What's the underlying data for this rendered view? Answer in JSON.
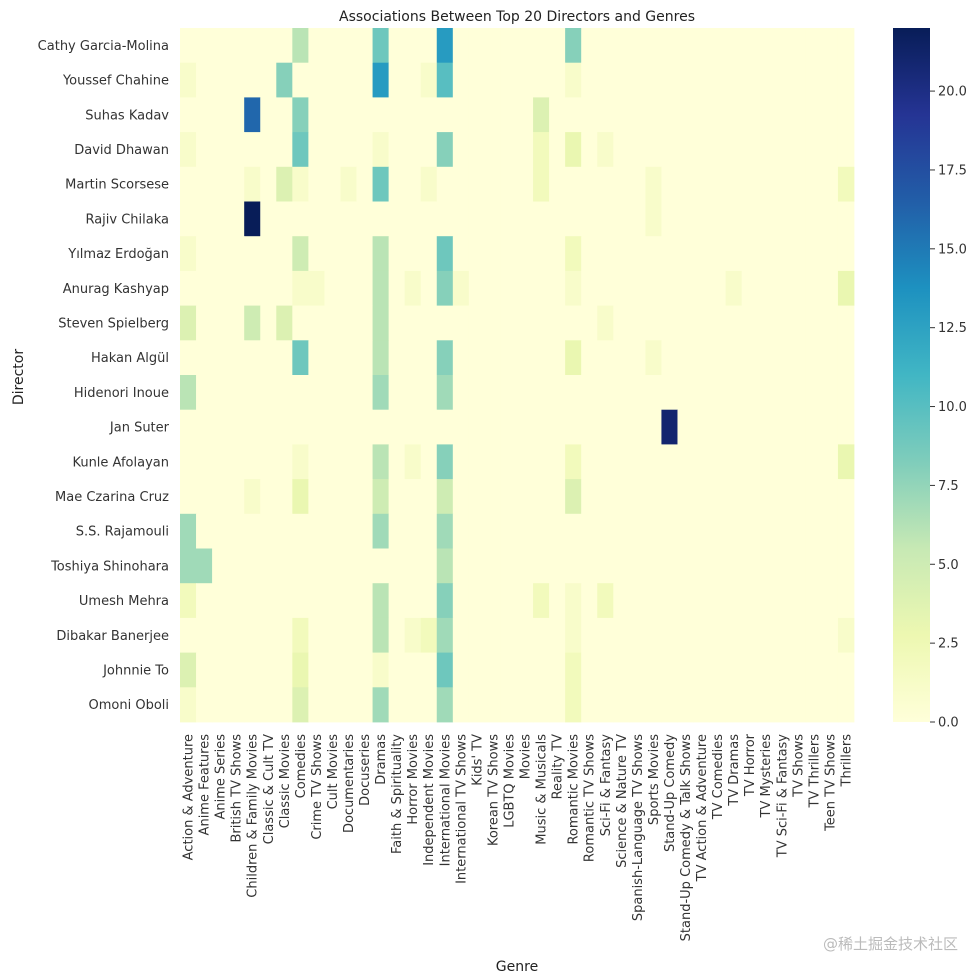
{
  "chart_data": {
    "type": "heatmap",
    "title": "Associations Between Top 20 Directors and Genres",
    "xlabel": "Genre",
    "ylabel": "Director",
    "colormap": "YlGnBu",
    "vmin": 0,
    "vmax": 22,
    "colorbar_ticks": [
      0,
      2.5,
      5,
      7.5,
      10,
      12.5,
      15,
      17.5,
      20
    ],
    "colorbar_tick_labels": [
      "0.0",
      "2.5",
      "5.0",
      "7.5",
      "10.0",
      "12.5",
      "15.0",
      "17.5",
      "20.0"
    ],
    "rows": [
      "Cathy Garcia-Molina",
      "Youssef Chahine",
      "Suhas Kadav",
      "David Dhawan",
      "Martin Scorsese",
      "Rajiv Chilaka",
      "Yılmaz Erdoğan",
      "Anurag Kashyap",
      "Steven Spielberg",
      "Hakan Algül",
      "Hidenori Inoue",
      "Jan Suter",
      "Kunle Afolayan",
      "Mae Czarina Cruz",
      "S.S. Rajamouli",
      "Toshiya Shinohara",
      "Umesh Mehra",
      "Dibakar Banerjee",
      "Johnnie To",
      "Omoni Oboli"
    ],
    "columns": [
      "Action & Adventure",
      "Anime Features",
      "Anime Series",
      "British TV Shows",
      "Children & Family Movies",
      "Classic & Cult TV",
      "Classic Movies",
      "Comedies",
      "Crime TV Shows",
      "Cult Movies",
      "Documentaries",
      "Docuseries",
      "Dramas",
      "Faith & Spirituality",
      "Horror Movies",
      "Independent Movies",
      "International Movies",
      "International TV Shows",
      "Kids' TV",
      "Korean TV Shows",
      "LGBTQ Movies",
      "Movies",
      "Music & Musicals",
      "Reality TV",
      "Romantic Movies",
      "Romantic TV Shows",
      "Sci-Fi & Fantasy",
      "Science & Nature TV",
      "Spanish-Language TV Shows",
      "Sports Movies",
      "Stand-Up Comedy",
      "Stand-Up Comedy & Talk Shows",
      "TV Action & Adventure",
      "TV Comedies",
      "TV Dramas",
      "TV Horror",
      "TV Mysteries",
      "TV Sci-Fi & Fantasy",
      "TV Shows",
      "TV Thrillers",
      "Teen TV Shows",
      "Thrillers"
    ],
    "values": [
      [
        0,
        0,
        0,
        0,
        0,
        0,
        0,
        6,
        0,
        0,
        0,
        0,
        9,
        0,
        0,
        0,
        13,
        0,
        0,
        0,
        0,
        0,
        0,
        0,
        8,
        0,
        0,
        0,
        0,
        0,
        0,
        0,
        0,
        0,
        0,
        0,
        0,
        0,
        0,
        0,
        0,
        0
      ],
      [
        1,
        0,
        0,
        0,
        0,
        0,
        8,
        0,
        0,
        0,
        0,
        0,
        13,
        0,
        0,
        1,
        10,
        0,
        0,
        0,
        0,
        0,
        0,
        0,
        1,
        0,
        0,
        0,
        0,
        0,
        0,
        0,
        0,
        0,
        0,
        0,
        0,
        0,
        0,
        0,
        0,
        0
      ],
      [
        0,
        0,
        0,
        0,
        16,
        0,
        0,
        8,
        0,
        0,
        0,
        0,
        0,
        0,
        0,
        0,
        0,
        0,
        0,
        0,
        0,
        0,
        4,
        0,
        0,
        0,
        0,
        0,
        0,
        0,
        0,
        0,
        0,
        0,
        0,
        0,
        0,
        0,
        0,
        0,
        0,
        0
      ],
      [
        1,
        0,
        0,
        0,
        0,
        0,
        0,
        9,
        0,
        0,
        0,
        0,
        1,
        0,
        0,
        0,
        8,
        0,
        0,
        0,
        0,
        0,
        2,
        0,
        3,
        0,
        1,
        0,
        0,
        0,
        0,
        0,
        0,
        0,
        0,
        0,
        0,
        0,
        0,
        0,
        0,
        0
      ],
      [
        0,
        0,
        0,
        0,
        1,
        0,
        4,
        1,
        0,
        0,
        1,
        0,
        9,
        0,
        0,
        1,
        0,
        0,
        0,
        0,
        0,
        0,
        2,
        0,
        0,
        0,
        0,
        0,
        0,
        1,
        0,
        0,
        0,
        0,
        0,
        0,
        0,
        0,
        0,
        0,
        0,
        2
      ],
      [
        0,
        0,
        0,
        0,
        22,
        0,
        0,
        0,
        0,
        0,
        0,
        0,
        0,
        0,
        0,
        0,
        0,
        0,
        0,
        0,
        0,
        0,
        0,
        0,
        0,
        0,
        0,
        0,
        0,
        1,
        0,
        0,
        0,
        0,
        0,
        0,
        0,
        0,
        0,
        0,
        0,
        0
      ],
      [
        1,
        0,
        0,
        0,
        0,
        0,
        0,
        5,
        0,
        0,
        0,
        0,
        6,
        0,
        0,
        0,
        9,
        0,
        0,
        0,
        0,
        0,
        0,
        0,
        2,
        0,
        0,
        0,
        0,
        0,
        0,
        0,
        0,
        0,
        0,
        0,
        0,
        0,
        0,
        0,
        0,
        0
      ],
      [
        0,
        0,
        0,
        0,
        0,
        0,
        0,
        1,
        1,
        0,
        0,
        0,
        6,
        0,
        1,
        0,
        8,
        1,
        0,
        0,
        0,
        0,
        0,
        0,
        1,
        0,
        0,
        0,
        0,
        0,
        0,
        0,
        0,
        0,
        1,
        0,
        0,
        0,
        0,
        0,
        0,
        3
      ],
      [
        4,
        0,
        0,
        0,
        5,
        0,
        4,
        0,
        0,
        0,
        0,
        0,
        6,
        0,
        0,
        0,
        0,
        0,
        0,
        0,
        0,
        0,
        0,
        0,
        0,
        0,
        1,
        0,
        0,
        0,
        0,
        0,
        0,
        0,
        0,
        0,
        0,
        0,
        0,
        0,
        0,
        0
      ],
      [
        0,
        0,
        0,
        0,
        0,
        0,
        0,
        9,
        0,
        0,
        0,
        0,
        6,
        0,
        0,
        0,
        8,
        0,
        0,
        0,
        0,
        0,
        0,
        0,
        3,
        0,
        0,
        0,
        0,
        1,
        0,
        0,
        0,
        0,
        0,
        0,
        0,
        0,
        0,
        0,
        0,
        0
      ],
      [
        6,
        0,
        0,
        0,
        0,
        0,
        0,
        0,
        0,
        0,
        0,
        0,
        7,
        0,
        0,
        0,
        7,
        0,
        0,
        0,
        0,
        0,
        0,
        0,
        0,
        0,
        0,
        0,
        0,
        0,
        0,
        0,
        0,
        0,
        0,
        0,
        0,
        0,
        0,
        0,
        0,
        0
      ],
      [
        0,
        0,
        0,
        0,
        0,
        0,
        0,
        0,
        0,
        0,
        0,
        0,
        0,
        0,
        0,
        0,
        0,
        0,
        0,
        0,
        0,
        0,
        0,
        0,
        0,
        0,
        0,
        0,
        0,
        0,
        21,
        0,
        0,
        0,
        0,
        0,
        0,
        0,
        0,
        0,
        0,
        0
      ],
      [
        0,
        0,
        0,
        0,
        0,
        0,
        0,
        1,
        0,
        0,
        0,
        0,
        6,
        0,
        1,
        0,
        8,
        0,
        0,
        0,
        0,
        0,
        0,
        0,
        2,
        0,
        0,
        0,
        0,
        0,
        0,
        0,
        0,
        0,
        0,
        0,
        0,
        0,
        0,
        0,
        0,
        3
      ],
      [
        0,
        0,
        0,
        0,
        1,
        0,
        0,
        3,
        0,
        0,
        0,
        0,
        5,
        0,
        0,
        0,
        5,
        0,
        0,
        0,
        0,
        0,
        0,
        0,
        4,
        0,
        0,
        0,
        0,
        0,
        0,
        0,
        0,
        0,
        0,
        0,
        0,
        0,
        0,
        0,
        0,
        0
      ],
      [
        7,
        0,
        0,
        0,
        0,
        0,
        0,
        0,
        0,
        0,
        0,
        0,
        7,
        0,
        0,
        0,
        7,
        0,
        0,
        0,
        0,
        0,
        0,
        0,
        0,
        0,
        0,
        0,
        0,
        0,
        0,
        0,
        0,
        0,
        0,
        0,
        0,
        0,
        0,
        0,
        0,
        0
      ],
      [
        7,
        7,
        0,
        0,
        0,
        0,
        0,
        0,
        0,
        0,
        0,
        0,
        0,
        0,
        0,
        0,
        6,
        0,
        0,
        0,
        0,
        0,
        0,
        0,
        0,
        0,
        0,
        0,
        0,
        0,
        0,
        0,
        0,
        0,
        0,
        0,
        0,
        0,
        0,
        0,
        0,
        0
      ],
      [
        2,
        0,
        0,
        0,
        0,
        0,
        0,
        0,
        0,
        0,
        0,
        0,
        6,
        0,
        0,
        0,
        8,
        0,
        0,
        0,
        0,
        0,
        2,
        0,
        1,
        0,
        2,
        0,
        0,
        0,
        0,
        0,
        0,
        0,
        0,
        0,
        0,
        0,
        0,
        0,
        0,
        0
      ],
      [
        0,
        0,
        0,
        0,
        0,
        0,
        0,
        2,
        0,
        0,
        0,
        0,
        6,
        0,
        1,
        2,
        7,
        0,
        0,
        0,
        0,
        0,
        0,
        0,
        1,
        0,
        0,
        0,
        0,
        0,
        0,
        0,
        0,
        0,
        0,
        0,
        0,
        0,
        0,
        0,
        0,
        1
      ],
      [
        4,
        0,
        0,
        0,
        0,
        0,
        0,
        3,
        0,
        0,
        0,
        0,
        1,
        0,
        0,
        0,
        9,
        0,
        0,
        0,
        0,
        0,
        0,
        0,
        2,
        0,
        0,
        0,
        0,
        0,
        0,
        0,
        0,
        0,
        0,
        0,
        0,
        0,
        0,
        0,
        0,
        0
      ],
      [
        1,
        0,
        0,
        0,
        0,
        0,
        0,
        4,
        0,
        0,
        0,
        0,
        7,
        0,
        0,
        0,
        7,
        0,
        0,
        0,
        0,
        0,
        0,
        0,
        2,
        0,
        0,
        0,
        0,
        0,
        0,
        0,
        0,
        0,
        0,
        0,
        0,
        0,
        0,
        0,
        0,
        0
      ]
    ]
  },
  "watermark": "@稀土掘金技术社区"
}
